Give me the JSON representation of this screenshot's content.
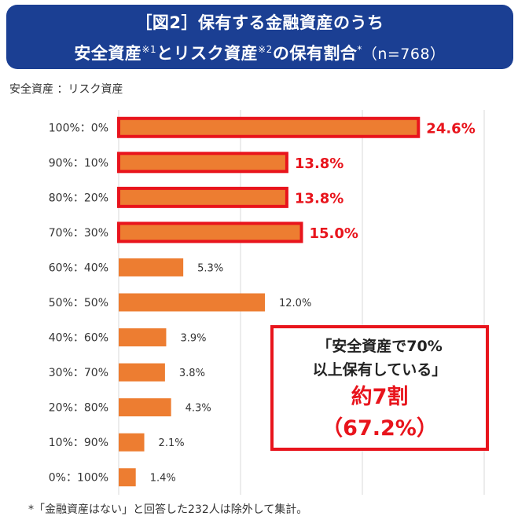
{
  "title": {
    "line1": "［図2］保有する金融資産のうち",
    "line2_part1": "安全資産",
    "line2_sup1": "※1",
    "line2_part2": "とリスク資産",
    "line2_sup2": "※2",
    "line2_part3": "の保有割合",
    "line2_sup3": "*",
    "line2_n": "（n=768）"
  },
  "axis_caption": "安全資産 ：リスク資産",
  "chart_data": {
    "type": "bar",
    "orientation": "horizontal",
    "categories": [
      "100%：0%",
      "90%：10%",
      "80%：20%",
      "70%：30%",
      "60%：40%",
      "50%：50%",
      "40%：60%",
      "30%：70%",
      "20%：80%",
      "10%：90%",
      "0%：100%"
    ],
    "values": [
      24.6,
      13.8,
      13.8,
      15.0,
      5.3,
      12.0,
      3.9,
      3.8,
      4.3,
      2.1,
      1.4
    ],
    "value_labels": [
      "24.6%",
      "13.8%",
      "13.8%",
      "15.0%",
      "5.3%",
      "12.0%",
      "3.9%",
      "3.8%",
      "4.3%",
      "2.1%",
      "1.4%"
    ],
    "highlighted": [
      true,
      true,
      true,
      true,
      false,
      false,
      false,
      false,
      false,
      false,
      false
    ],
    "xlim": [
      0,
      30
    ],
    "grid": true,
    "colors": {
      "bar": "#ed7d31",
      "highlight_border": "#e8141c",
      "grid": "#d9d9d9"
    }
  },
  "callout": {
    "line1": "「安全資産で70%",
    "line2": "以上保有している」",
    "line3": "約7割",
    "line4": "（67.2%）"
  },
  "footnote": "*「金融資産はない」と回答した232人は除外して集計。"
}
